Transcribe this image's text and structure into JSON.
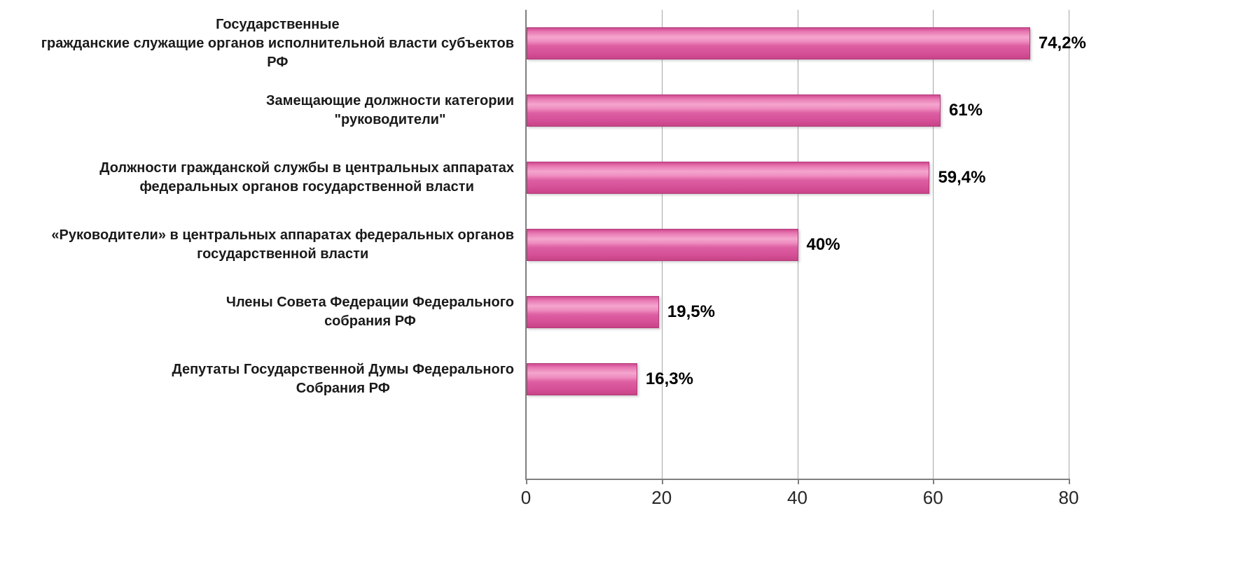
{
  "chart_data": {
    "type": "bar",
    "orientation": "horizontal",
    "title": "",
    "xlabel": "",
    "ylabel": "",
    "categories": [
      "Государственные\nгражданские служащие органов исполнительной власти субъектов\nРФ",
      "Замещающие должности категории\n\"руководители\"",
      "Должности гражданской службы в центральных аппаратах\nфедеральных органов государственной власти",
      "«Руководители» в центральных аппаратах федеральных органов\nгосударственной власти",
      "Члены Совета Федерации Федерального\nсобрания РФ",
      "Депутаты Государственной Думы Федерального\nСобрания РФ"
    ],
    "values": [
      74.2,
      61,
      59.4,
      40,
      19.5,
      16.3
    ],
    "value_labels": [
      "74,2%",
      "61%",
      "59,4%",
      "40%",
      "19,5%",
      "16,3%"
    ],
    "xlim": [
      0,
      80
    ],
    "x_ticks": [
      0,
      20,
      40,
      60,
      80
    ],
    "grid": "vertical",
    "legend": "none",
    "bar_color": "#de5ca0",
    "bar_border_color": "#b23a7c",
    "axis_color": "#7f7f7f",
    "gridline_color": "#a6a6a6"
  }
}
